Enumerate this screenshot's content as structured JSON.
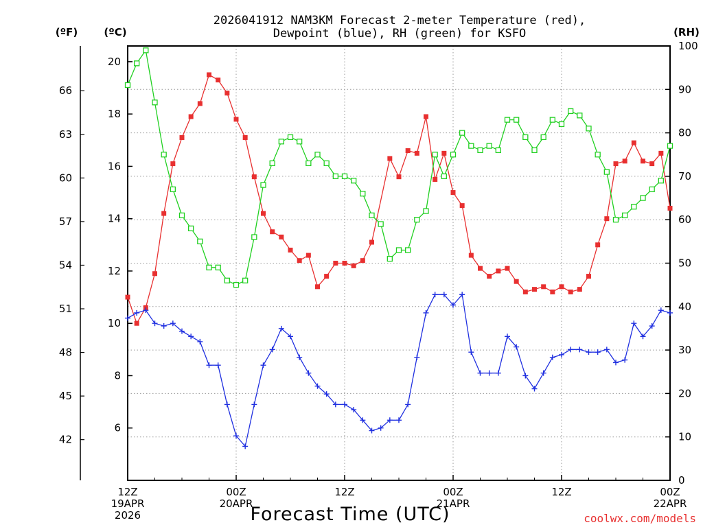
{
  "chart_data": {
    "type": "line",
    "title_line1": "2026041912 NAM3KM Forecast 2-meter Temperature (red),",
    "title_line2": "Dewpoint (blue), RH (green) for KSFO",
    "xlabel": "Forecast Time (UTC)",
    "credit": "coolwx.com/models",
    "units": {
      "fahrenheit": "(ºF)",
      "celsius": "(ºC)",
      "rh": "(RH)"
    },
    "ylim_c": [
      4.0,
      20.6
    ],
    "ylim_rh": [
      0,
      100
    ],
    "x_range_hours": [
      0,
      60
    ],
    "f_ticks": [
      42,
      45,
      48,
      51,
      54,
      57,
      60,
      63,
      66
    ],
    "c_ticks": [
      6,
      8,
      10,
      12,
      14,
      16,
      18,
      20
    ],
    "rh_ticks": [
      0,
      10,
      20,
      30,
      40,
      50,
      60,
      70,
      80,
      90,
      100
    ],
    "x_ticks": [
      {
        "hour": 0,
        "l1": "12Z",
        "l2": "19APR",
        "l3": "2026"
      },
      {
        "hour": 12,
        "l1": "00Z",
        "l2": "20APR",
        "l3": ""
      },
      {
        "hour": 24,
        "l1": "12Z",
        "l2": "",
        "l3": ""
      },
      {
        "hour": 36,
        "l1": "00Z",
        "l2": "21APR",
        "l3": ""
      },
      {
        "hour": 48,
        "l1": "12Z",
        "l2": "",
        "l3": ""
      },
      {
        "hour": 60,
        "l1": "00Z",
        "l2": "22APR",
        "l3": ""
      }
    ],
    "series": [
      {
        "name": "Temperature (°C)",
        "axis": "c",
        "color": "#e83030",
        "marker": "filled-square",
        "values": [
          11.0,
          10.0,
          10.6,
          11.9,
          14.2,
          16.1,
          17.1,
          17.9,
          18.4,
          19.5,
          19.3,
          18.8,
          17.8,
          17.1,
          15.6,
          14.2,
          13.5,
          13.3,
          12.8,
          12.4,
          12.6,
          11.4,
          11.8,
          12.3,
          12.3,
          12.2,
          12.4,
          13.1,
          16.3,
          15.6,
          16.6,
          16.5,
          17.9,
          15.5,
          16.5,
          15.0,
          14.5,
          12.6,
          12.1,
          11.8,
          12.0,
          12.1,
          11.6,
          11.2,
          11.3,
          11.4,
          11.2,
          11.4,
          11.2,
          11.3,
          11.8,
          13.0,
          14.0,
          16.1,
          16.2,
          16.9,
          16.2,
          16.1,
          16.5,
          14.4
        ],
        "note": "x hour positions given in x_hours (hourly, 0 to 60)",
        "x_hours": [
          0,
          1,
          2,
          3,
          4,
          5,
          6,
          7,
          8,
          9,
          10,
          11,
          12,
          13,
          14,
          15,
          16,
          17,
          18,
          19,
          20,
          21,
          22,
          23,
          24,
          25,
          26,
          27,
          29,
          30,
          31,
          32,
          33,
          34,
          35,
          36,
          37,
          38,
          39,
          40,
          41,
          42,
          43,
          44,
          45,
          46,
          47,
          48,
          49,
          50,
          51,
          52,
          53,
          54,
          55,
          56,
          57,
          58,
          59,
          60
        ]
      },
      {
        "name": "Dewpoint (°C)",
        "axis": "c",
        "color": "#2030e0",
        "marker": "plus",
        "values": [
          10.2,
          10.4,
          10.5,
          10.0,
          9.9,
          10.0,
          9.7,
          9.5,
          9.3,
          8.4,
          8.4,
          6.9,
          5.7,
          5.3,
          6.9,
          8.4,
          9.0,
          9.8,
          9.5,
          8.7,
          8.1,
          7.6,
          7.3,
          6.9,
          6.9,
          6.7,
          6.3,
          5.9,
          6.0,
          6.3,
          6.3,
          6.9,
          8.7,
          10.4,
          11.1,
          11.1,
          10.7,
          11.1,
          8.9,
          8.1,
          8.1,
          8.1,
          9.5,
          9.1,
          8.0,
          7.5,
          8.1,
          8.7,
          8.8,
          9.0,
          9.0,
          8.9,
          8.9,
          9.0,
          8.5,
          8.6,
          10.0,
          9.5,
          9.9,
          10.5,
          10.4
        ],
        "x_hours": [
          0,
          1,
          2,
          3,
          4,
          5,
          6,
          7,
          8,
          9,
          10,
          11,
          12,
          13,
          14,
          15,
          16,
          17,
          18,
          19,
          20,
          21,
          22,
          23,
          24,
          25,
          26,
          27,
          28,
          29,
          30,
          31,
          32,
          33,
          34,
          35,
          36,
          37,
          38,
          39,
          40,
          41,
          42,
          43,
          44,
          45,
          46,
          47,
          48,
          49,
          50,
          51,
          52,
          53,
          54,
          55,
          56,
          57,
          58,
          59,
          60
        ]
      },
      {
        "name": "RH (%)",
        "axis": "rh",
        "color": "#20d020",
        "marker": "open-square",
        "values": [
          91,
          96,
          99,
          87,
          75,
          67,
          61,
          58,
          55,
          49,
          49,
          46,
          45,
          46,
          56,
          68,
          73,
          78,
          79,
          78,
          73,
          75,
          73,
          70,
          70,
          69,
          66,
          61,
          59,
          51,
          53,
          53,
          60,
          62,
          75,
          70,
          75,
          80,
          77,
          76,
          77,
          76,
          83,
          83,
          79,
          76,
          79,
          83,
          82,
          85,
          84,
          81,
          75,
          71,
          60,
          61,
          63,
          65,
          67,
          69,
          77
        ],
        "x_hours": [
          0,
          1,
          2,
          3,
          4,
          5,
          6,
          7,
          8,
          9,
          10,
          11,
          12,
          13,
          14,
          15,
          16,
          17,
          18,
          19,
          20,
          21,
          22,
          23,
          24,
          25,
          26,
          27,
          28,
          29,
          30,
          31,
          32,
          33,
          34,
          35,
          36,
          37,
          38,
          39,
          40,
          41,
          42,
          43,
          44,
          45,
          46,
          47,
          48,
          49,
          50,
          51,
          52,
          53,
          54,
          55,
          56,
          57,
          58,
          59,
          60
        ]
      }
    ]
  }
}
